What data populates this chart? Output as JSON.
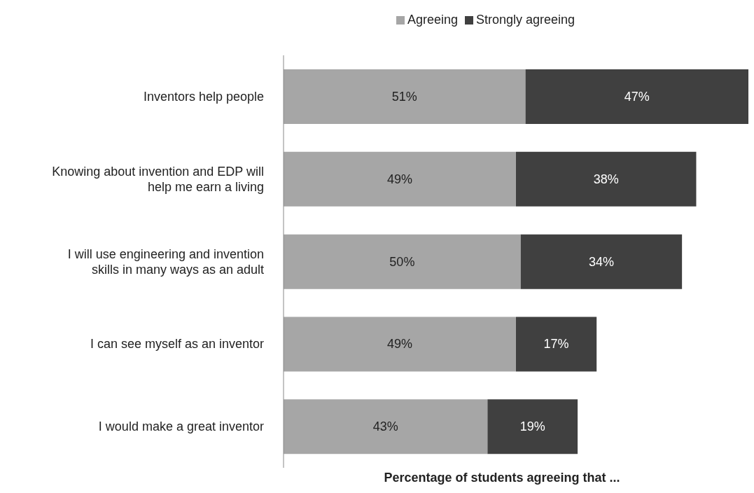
{
  "chart_data": {
    "type": "bar",
    "orientation": "horizontal",
    "stacked": true,
    "xlabel": "Percentage of students agreeing that ...",
    "legend": "top",
    "categories": [
      "Inventors help people",
      "Knowing about invention and EDP will help me earn a living",
      "I will use engineering and invention skills in many ways as an adult",
      "I can see myself as an inventor",
      "I would make a great inventor"
    ],
    "series": [
      {
        "name": "Agreeing",
        "color": "#a6a6a6",
        "values": [
          51,
          49,
          50,
          49,
          43
        ],
        "value_labels": [
          "51%",
          "49%",
          "50%",
          "49%",
          "43%"
        ]
      },
      {
        "name": "Strongly agreeing",
        "color": "#404040",
        "values": [
          47,
          38,
          34,
          17,
          19
        ],
        "value_labels": [
          "47%",
          "38%",
          "34%",
          "17%",
          "19%"
        ]
      }
    ]
  }
}
